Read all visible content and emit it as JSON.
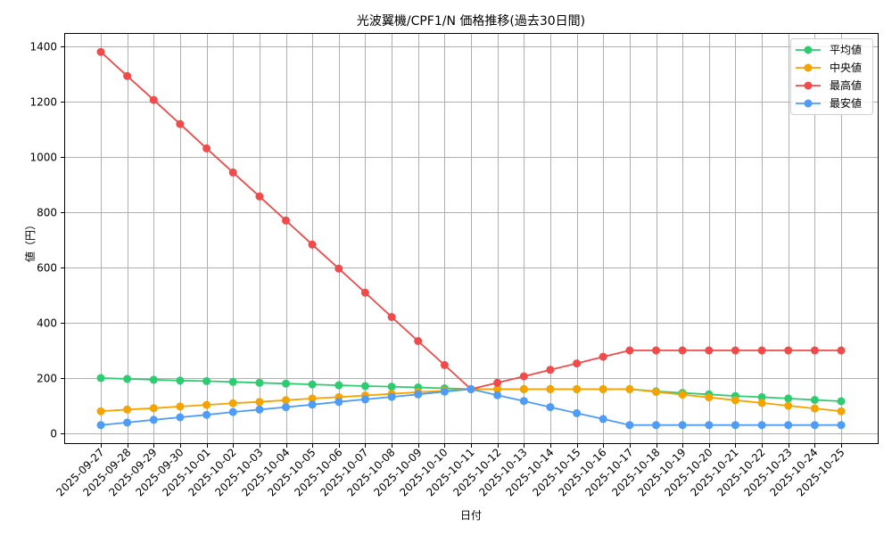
{
  "chart_data": {
    "type": "line",
    "title": "光波翼機/CPF1/N 価格推移(過去30日間)",
    "xlabel": "日付",
    "ylabel": "値（円）",
    "ylim": [
      -35,
      1450
    ],
    "yticks": [
      0,
      200,
      400,
      600,
      800,
      1000,
      1200,
      1400
    ],
    "grid": true,
    "legend_position": "upper right",
    "categories": [
      "2025-09-27",
      "2025-09-28",
      "2025-09-29",
      "2025-09-30",
      "2025-10-01",
      "2025-10-02",
      "2025-10-03",
      "2025-10-04",
      "2025-10-05",
      "2025-10-06",
      "2025-10-07",
      "2025-10-08",
      "2025-10-09",
      "2025-10-10",
      "2025-10-11",
      "2025-10-12",
      "2025-10-13",
      "2025-10-14",
      "2025-10-15",
      "2025-10-16",
      "2025-10-17",
      "2025-10-18",
      "2025-10-19",
      "2025-10-20",
      "2025-10-21",
      "2025-10-22",
      "2025-10-23",
      "2025-10-24",
      "2025-10-25"
    ],
    "series": [
      {
        "name": "平均値",
        "color": "#2ecc71",
        "values": [
          200,
          197,
          194,
          191,
          189,
          186,
          183,
          180,
          177,
          174,
          171,
          169,
          166,
          163,
          160,
          160,
          160,
          160,
          160,
          160,
          160,
          152,
          146,
          141,
          135,
          131,
          126,
          121,
          116
        ]
      },
      {
        "name": "中央値",
        "color": "#f5a300",
        "values": [
          80,
          86,
          91,
          97,
          103,
          109,
          114,
          120,
          126,
          131,
          137,
          143,
          149,
          154,
          160,
          160,
          160,
          160,
          160,
          160,
          160,
          150,
          140,
          130,
          120,
          110,
          100,
          90,
          80
        ]
      },
      {
        "name": "最高値",
        "color": "#f04a4a",
        "values": [
          1380,
          1293,
          1206,
          1119,
          1031,
          944,
          857,
          770,
          683,
          596,
          509,
          421,
          334,
          247,
          160,
          183,
          206,
          230,
          253,
          277,
          300,
          300,
          300,
          300,
          300,
          300,
          300,
          300,
          300
        ]
      },
      {
        "name": "最安値",
        "color": "#4d9cf8",
        "values": [
          30,
          39,
          49,
          58,
          67,
          77,
          86,
          95,
          104,
          114,
          123,
          132,
          141,
          151,
          160,
          138,
          117,
          95,
          73,
          52,
          30,
          30,
          30,
          30,
          30,
          30,
          30,
          30,
          30
        ]
      }
    ]
  }
}
